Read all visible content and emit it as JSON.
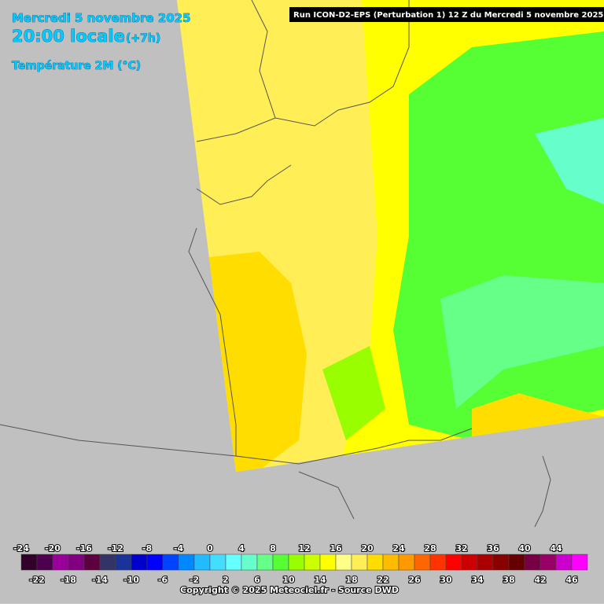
{
  "header": {
    "date": "Mercredi 5 novembre 2025",
    "time": "20:00 locale",
    "offset": "(+7h)",
    "variable": "Température 2M (°C)",
    "run": "Run ICON-D2-EPS (Perturbation 1) 12 Z du Mercredi 5 novembre 2025"
  },
  "legend": {
    "labels_top": [
      "-24",
      "-20",
      "-16",
      "-12",
      "-8",
      "-4",
      "0",
      "4",
      "8",
      "12",
      "16",
      "20",
      "24",
      "28",
      "32",
      "36",
      "40",
      "44"
    ],
    "labels_bottom": [
      "-22",
      "-18",
      "-14",
      "-10",
      "-6",
      "-2",
      "2",
      "6",
      "10",
      "14",
      "18",
      "22",
      "26",
      "30",
      "34",
      "38",
      "42",
      "46"
    ],
    "colors": [
      "#33002b",
      "#4d004d",
      "#990099",
      "#800080",
      "#5c0040",
      "#333366",
      "#1a3399",
      "#0000cc",
      "#0000ff",
      "#0044ff",
      "#0088ff",
      "#22bbff",
      "#44ddff",
      "#66ffff",
      "#66ffcc",
      "#66ff88",
      "#55ff33",
      "#99ff00",
      "#ccff00",
      "#ffff00",
      "#ffff88",
      "#ffee55",
      "#ffdd00",
      "#ffbb00",
      "#ff9900",
      "#ff6600",
      "#ff3300",
      "#ff0000",
      "#cc0000",
      "#aa0000",
      "#880000",
      "#660000",
      "#770044",
      "#990066",
      "#cc00cc",
      "#ff00ff"
    ]
  },
  "footer": {
    "copyright": "Copyright © 2025 Meteociel.fr - Source DWD"
  }
}
